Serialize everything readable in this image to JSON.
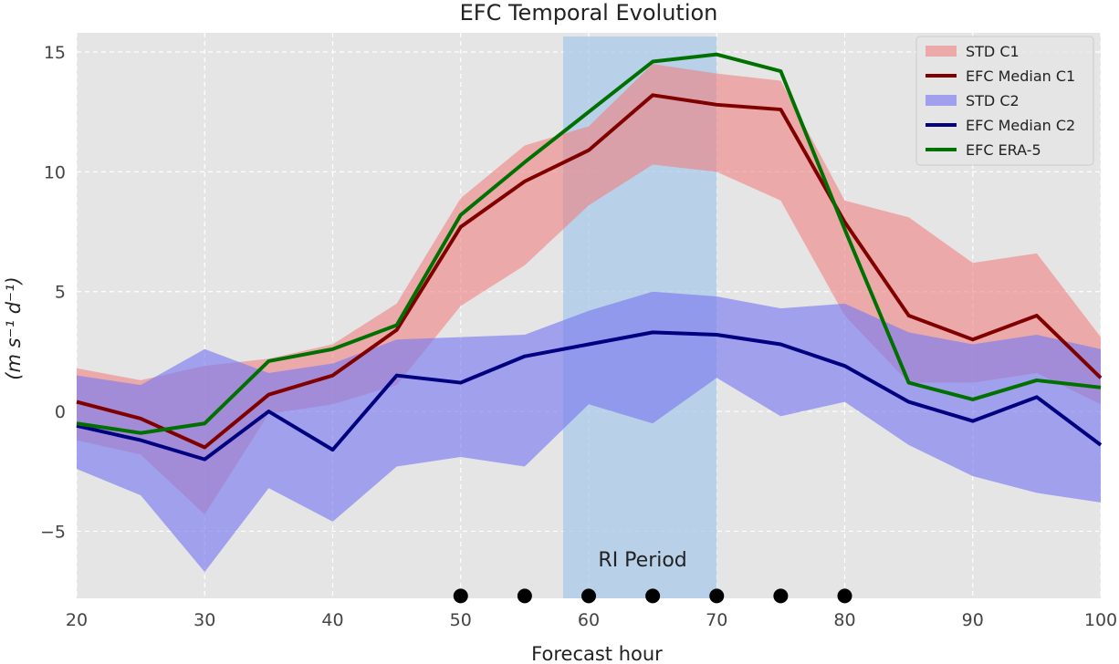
{
  "chart_data": {
    "type": "line",
    "title": "EFC Temporal Evolution",
    "xlabel": "Forecast hour",
    "ylabel": "(m s⁻¹ d⁻¹)",
    "xlim": [
      20,
      100
    ],
    "ylim": [
      -7.8,
      15.8
    ],
    "xticks": [
      20,
      30,
      40,
      50,
      60,
      70,
      80,
      90,
      100
    ],
    "xtick_labels": [
      "20",
      "30",
      "40",
      "50",
      "60",
      "70",
      "80",
      "90",
      "100"
    ],
    "yticks": [
      -5,
      0,
      5,
      10,
      15
    ],
    "ytick_labels": [
      "−5",
      "0",
      "5",
      "10",
      "15"
    ],
    "grid": true,
    "legend_position": "top-right",
    "x": [
      20,
      25,
      30,
      35,
      40,
      45,
      50,
      55,
      60,
      65,
      70,
      75,
      80,
      85,
      90,
      95,
      100
    ],
    "bands": [
      {
        "name": "STD C1",
        "color": "#f08080",
        "opacity": 0.6,
        "upper": [
          1.8,
          1.3,
          1.9,
          2.2,
          2.8,
          4.5,
          8.9,
          11.1,
          11.9,
          14.5,
          14.1,
          13.8,
          8.8,
          8.1,
          6.2,
          6.6,
          3.1
        ],
        "lower": [
          -1.2,
          -1.8,
          -4.3,
          -0.1,
          0.3,
          1.1,
          4.4,
          6.1,
          8.6,
          10.3,
          10.0,
          8.8,
          4.0,
          1.2,
          1.2,
          1.6,
          0.3
        ]
      },
      {
        "name": "STD C2",
        "color": "#7b7bf0",
        "opacity": 0.65,
        "upper": [
          1.5,
          1.1,
          2.6,
          1.6,
          2.0,
          3.0,
          3.1,
          3.2,
          4.2,
          5.0,
          4.8,
          4.3,
          4.5,
          3.3,
          2.8,
          3.2,
          2.6
        ],
        "lower": [
          -2.4,
          -3.5,
          -6.7,
          -3.2,
          -4.6,
          -2.3,
          -1.9,
          -2.3,
          0.3,
          -0.5,
          1.4,
          -0.2,
          0.4,
          -1.4,
          -2.7,
          -3.4,
          -3.8
        ]
      }
    ],
    "series": [
      {
        "name": "EFC Median C1",
        "color": "#800000",
        "values": [
          0.4,
          -0.3,
          -1.5,
          0.7,
          1.5,
          3.4,
          7.7,
          9.6,
          10.9,
          13.2,
          12.8,
          12.6,
          7.9,
          4.0,
          3.0,
          4.0,
          1.4
        ]
      },
      {
        "name": "EFC Median C2",
        "color": "#000080",
        "values": [
          -0.6,
          -1.2,
          -2.0,
          0.0,
          -1.6,
          1.5,
          1.2,
          2.3,
          2.8,
          3.3,
          3.2,
          2.8,
          1.9,
          0.4,
          -0.4,
          0.6,
          -1.4
        ]
      },
      {
        "name": "EFC ERA-5",
        "color": "#007000",
        "values": [
          -0.5,
          -0.9,
          -0.5,
          2.1,
          2.6,
          3.6,
          8.2,
          10.4,
          12.5,
          14.6,
          14.9,
          14.2,
          7.6,
          1.2,
          0.5,
          1.3,
          1.0
        ]
      }
    ],
    "legend": [
      "STD C1",
      "EFC Median C1",
      "STD C2",
      "EFC Median C2",
      "EFC ERA-5"
    ],
    "shaded_region": {
      "label": "RI Period",
      "x_start": 58,
      "x_end": 70,
      "color": "#aac8ea"
    },
    "markers": {
      "x": [
        50,
        55,
        60,
        65,
        70,
        75,
        80
      ],
      "y": -7.7,
      "color": "#000000"
    }
  }
}
